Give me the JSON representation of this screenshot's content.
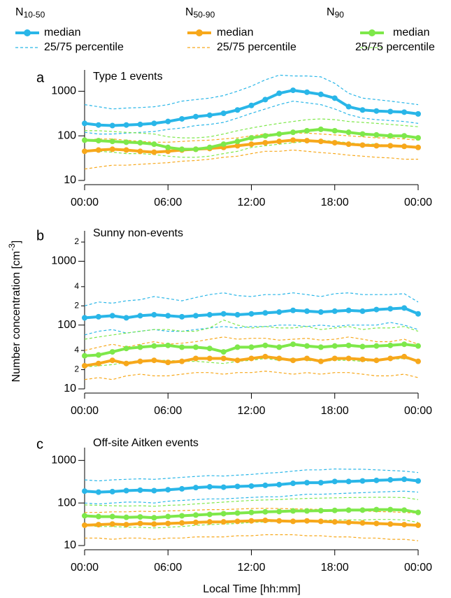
{
  "legend": [
    {
      "label": "N",
      "sub": "10-50",
      "color": "#29b6e8",
      "median": "median",
      "percentile": "25/75 percentile"
    },
    {
      "label": "N",
      "sub": "50-90",
      "color": "#f7a81b",
      "median": "median",
      "percentile": "25/75 percentile"
    },
    {
      "label": "N",
      "sub": "90",
      "color": "#7ee84a",
      "median": "median",
      "percentile": "25/75 percentile"
    }
  ],
  "y_label": {
    "text": "Number concentration [cm",
    "sup": "-3",
    "end": "]"
  },
  "x_label": "Local Time [hh:mm]",
  "chart_data": [
    {
      "type": "line",
      "panel": "a",
      "title": "Type 1 events",
      "log_y": true,
      "x": [
        0,
        1,
        2,
        3,
        4,
        5,
        6,
        7,
        8,
        9,
        10,
        11,
        12,
        13,
        14,
        15,
        16,
        17,
        18,
        19,
        20,
        21,
        22,
        23,
        24
      ],
      "xlim": [
        0,
        24
      ],
      "xticks": [
        {
          "value": 0,
          "label": "00:00"
        },
        {
          "value": 6,
          "label": "06:00"
        },
        {
          "value": 12,
          "label": "12:00"
        },
        {
          "value": 18,
          "label": "18:00"
        },
        {
          "value": 24,
          "label": "00:00"
        }
      ],
      "ylim": [
        10,
        3000
      ],
      "yticks": [
        10,
        100,
        1000
      ],
      "groups": [
        {
          "median": [
            190,
            175,
            170,
            175,
            180,
            190,
            210,
            240,
            270,
            290,
            320,
            380,
            480,
            650,
            900,
            1050,
            950,
            850,
            700,
            450,
            380,
            360,
            350,
            340,
            310
          ],
          "p25": [
            120,
            110,
            110,
            115,
            120,
            125,
            140,
            150,
            170,
            180,
            200,
            250,
            320,
            400,
            500,
            600,
            550,
            500,
            400,
            300,
            250,
            230,
            220,
            210,
            190
          ],
          "p75": [
            500,
            450,
            400,
            420,
            430,
            450,
            500,
            600,
            650,
            700,
            800,
            1000,
            1300,
            1800,
            2300,
            2200,
            2200,
            2100,
            1500,
            900,
            700,
            650,
            600,
            550,
            500
          ]
        },
        {
          "median": [
            45,
            48,
            50,
            48,
            45,
            43,
            45,
            48,
            50,
            52,
            55,
            60,
            65,
            70,
            75,
            80,
            78,
            75,
            70,
            65,
            62,
            60,
            60,
            58,
            55
          ],
          "p25": [
            18,
            20,
            22,
            22,
            23,
            24,
            25,
            27,
            28,
            30,
            33,
            35,
            40,
            45,
            45,
            48,
            45,
            42,
            40,
            37,
            35,
            33,
            32,
            30,
            30
          ],
          "p75": [
            80,
            85,
            85,
            80,
            75,
            72,
            72,
            75,
            78,
            80,
            85,
            90,
            100,
            110,
            110,
            115,
            115,
            110,
            105,
            100,
            95,
            90,
            90,
            85,
            80
          ]
        },
        {
          "median": [
            80,
            78,
            75,
            72,
            70,
            65,
            55,
            50,
            50,
            55,
            65,
            75,
            90,
            100,
            110,
            120,
            130,
            140,
            130,
            120,
            110,
            105,
            100,
            100,
            90
          ],
          "p25": [
            45,
            45,
            43,
            40,
            40,
            38,
            35,
            33,
            33,
            35,
            40,
            45,
            55,
            60,
            65,
            70,
            75,
            80,
            75,
            70,
            65,
            65,
            60,
            60,
            55
          ],
          "p75": [
            130,
            130,
            125,
            120,
            115,
            110,
            95,
            90,
            90,
            95,
            110,
            130,
            150,
            170,
            190,
            210,
            230,
            240,
            230,
            210,
            200,
            190,
            180,
            170,
            160
          ]
        }
      ]
    },
    {
      "type": "line",
      "panel": "b",
      "title": "Sunny non-events",
      "log_y": true,
      "x": [
        0,
        1,
        2,
        3,
        4,
        5,
        6,
        7,
        8,
        9,
        10,
        11,
        12,
        13,
        14,
        15,
        16,
        17,
        18,
        19,
        20,
        21,
        22,
        23,
        24
      ],
      "xlim": [
        0,
        24
      ],
      "xticks": [
        {
          "value": 0,
          "label": "00:00"
        },
        {
          "value": 6,
          "label": "06:00"
        },
        {
          "value": 12,
          "label": "12:00"
        },
        {
          "value": 18,
          "label": "18:00"
        },
        {
          "value": 24,
          "label": "00:00"
        }
      ],
      "ylim": [
        10,
        3000
      ],
      "yticks": [
        10,
        {
          "value": 20,
          "label": "2"
        },
        {
          "value": 40,
          "label": "4"
        },
        100,
        {
          "value": 200,
          "label": "2"
        },
        {
          "value": 400,
          "label": "4"
        },
        1000,
        {
          "value": 2000,
          "label": "2"
        }
      ],
      "groups": [
        {
          "median": [
            130,
            135,
            140,
            130,
            140,
            145,
            140,
            135,
            140,
            145,
            150,
            145,
            150,
            155,
            160,
            170,
            165,
            160,
            165,
            170,
            165,
            175,
            180,
            185,
            150
          ],
          "p25": [
            70,
            80,
            85,
            75,
            80,
            85,
            80,
            80,
            85,
            90,
            95,
            90,
            95,
            95,
            100,
            100,
            95,
            100,
            95,
            100,
            100,
            100,
            110,
            100,
            85
          ],
          "p75": [
            200,
            230,
            220,
            240,
            250,
            280,
            260,
            240,
            270,
            300,
            320,
            290,
            280,
            300,
            300,
            320,
            300,
            280,
            310,
            320,
            300,
            300,
            300,
            310,
            230
          ]
        },
        {
          "median": [
            23,
            25,
            28,
            25,
            27,
            28,
            26,
            27,
            30,
            30,
            30,
            28,
            30,
            32,
            30,
            28,
            30,
            27,
            30,
            30,
            29,
            28,
            30,
            32,
            27
          ],
          "p25": [
            14,
            15,
            14,
            16,
            17,
            16,
            16,
            17,
            18,
            18,
            17,
            18,
            18,
            19,
            18,
            17,
            18,
            17,
            18,
            18,
            17,
            16,
            16,
            17,
            15
          ],
          "p75": [
            40,
            45,
            50,
            45,
            50,
            55,
            50,
            52,
            55,
            60,
            65,
            60,
            62,
            62,
            58,
            60,
            62,
            58,
            60,
            65,
            60,
            55,
            55,
            60,
            50
          ]
        },
        {
          "median": [
            33,
            34,
            38,
            43,
            45,
            47,
            48,
            45,
            45,
            43,
            38,
            45,
            45,
            48,
            45,
            50,
            47,
            45,
            47,
            48,
            46,
            47,
            48,
            50,
            47
          ],
          "p25": [
            22,
            23,
            24,
            26,
            28,
            28,
            28,
            27,
            27,
            26,
            25,
            27,
            28,
            30,
            28,
            30,
            28,
            27,
            28,
            28,
            27,
            28,
            29,
            30,
            28
          ],
          "p75": [
            60,
            65,
            70,
            75,
            80,
            85,
            85,
            80,
            80,
            90,
            120,
            100,
            90,
            95,
            90,
            90,
            95,
            85,
            90,
            95,
            85,
            90,
            90,
            95,
            80
          ]
        }
      ]
    },
    {
      "type": "line",
      "panel": "c",
      "title": "Off-site Aitken events",
      "log_y": true,
      "x": [
        0,
        1,
        2,
        3,
        4,
        5,
        6,
        7,
        8,
        9,
        10,
        11,
        12,
        13,
        14,
        15,
        16,
        17,
        18,
        19,
        20,
        21,
        22,
        23,
        24
      ],
      "xlim": [
        0,
        24
      ],
      "xticks": [
        {
          "value": 0,
          "label": "00:00"
        },
        {
          "value": 6,
          "label": "06:00"
        },
        {
          "value": 12,
          "label": "12:00"
        },
        {
          "value": 18,
          "label": "18:00"
        },
        {
          "value": 24,
          "label": "00:00"
        }
      ],
      "ylim": [
        10,
        2000
      ],
      "yticks": [
        10,
        100,
        1000
      ],
      "groups": [
        {
          "median": [
            190,
            180,
            185,
            195,
            200,
            195,
            205,
            215,
            230,
            240,
            235,
            245,
            250,
            260,
            270,
            290,
            300,
            300,
            320,
            320,
            330,
            340,
            350,
            360,
            330
          ],
          "p25": [
            100,
            95,
            100,
            105,
            105,
            100,
            110,
            115,
            120,
            125,
            125,
            130,
            135,
            140,
            140,
            150,
            160,
            160,
            165,
            170,
            175,
            180,
            185,
            190,
            180
          ],
          "p75": [
            350,
            330,
            350,
            360,
            370,
            360,
            380,
            400,
            420,
            440,
            430,
            450,
            470,
            500,
            520,
            560,
            600,
            600,
            630,
            620,
            620,
            600,
            580,
            560,
            520
          ]
        },
        {
          "median": [
            30,
            31,
            32,
            31,
            33,
            32,
            33,
            34,
            35,
            36,
            36,
            37,
            38,
            39,
            38,
            37,
            38,
            37,
            36,
            35,
            34,
            33,
            32,
            31,
            30
          ],
          "p25": [
            15,
            15,
            14,
            15,
            15,
            14,
            15,
            15,
            16,
            16,
            16,
            17,
            17,
            18,
            18,
            18,
            17,
            17,
            16,
            16,
            15,
            15,
            14,
            14,
            13
          ],
          "p75": [
            60,
            60,
            62,
            62,
            64,
            63,
            65,
            66,
            68,
            70,
            70,
            72,
            74,
            75,
            74,
            73,
            72,
            70,
            68,
            66,
            65,
            63,
            62,
            60,
            58
          ]
        },
        {
          "median": [
            50,
            48,
            48,
            46,
            47,
            45,
            48,
            50,
            52,
            54,
            56,
            58,
            60,
            62,
            63,
            65,
            65,
            66,
            67,
            68,
            68,
            70,
            70,
            68,
            60
          ],
          "p25": [
            30,
            28,
            28,
            27,
            27,
            26,
            27,
            28,
            30,
            31,
            32,
            33,
            35,
            36,
            37,
            38,
            38,
            39,
            40,
            40,
            40,
            41,
            41,
            40,
            35
          ],
          "p75": [
            90,
            88,
            86,
            85,
            86,
            84,
            88,
            90,
            95,
            100,
            105,
            110,
            115,
            118,
            120,
            125,
            128,
            130,
            132,
            134,
            135,
            136,
            136,
            134,
            120
          ]
        }
      ]
    }
  ]
}
